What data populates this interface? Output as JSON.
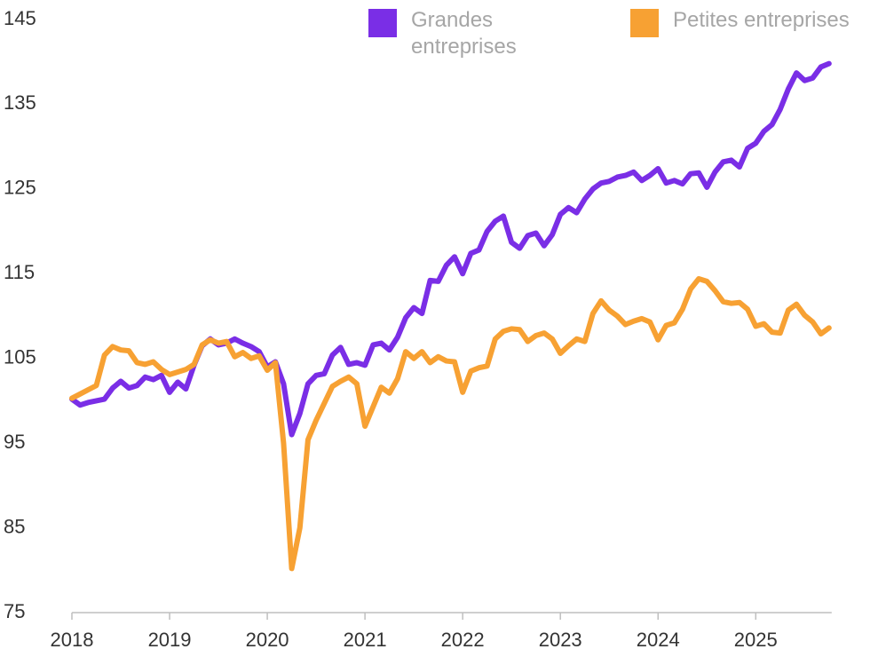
{
  "chart_data": {
    "type": "line",
    "categories": [
      "2018",
      null,
      null,
      null,
      null,
      null,
      null,
      null,
      null,
      null,
      null,
      null,
      "2019",
      null,
      null,
      null,
      null,
      null,
      null,
      null,
      null,
      null,
      null,
      null,
      "2020",
      null,
      null,
      null,
      null,
      null,
      null,
      null,
      null,
      null,
      null,
      null,
      "2021",
      null,
      null,
      null,
      null,
      null,
      null,
      null,
      null,
      null,
      null,
      null,
      "2022",
      null,
      null,
      null,
      null,
      null,
      null,
      null,
      null,
      null,
      null,
      null,
      "2023",
      null,
      null,
      null,
      null,
      null,
      null,
      null,
      null,
      null,
      null,
      null,
      "2024",
      null,
      null,
      null,
      null,
      null,
      null,
      null,
      null,
      null,
      null,
      null,
      "2025",
      null,
      null,
      null,
      null,
      null,
      null,
      null,
      null,
      null
    ],
    "series": [
      {
        "name": "Grandes entreprises",
        "color": "#7a2ee6",
        "values": [
          100.2,
          99.5,
          99.8,
          100,
          100.2,
          101.5,
          102.3,
          101.5,
          101.8,
          102.8,
          102.5,
          103,
          101,
          102.2,
          101.4,
          104.2,
          106.5,
          107.3,
          106.6,
          106.8,
          107.3,
          106.8,
          106.4,
          105.8,
          104,
          104.6,
          102,
          96,
          98.5,
          102,
          103,
          103.2,
          105.4,
          106.3,
          104.3,
          104.5,
          104.2,
          106.6,
          106.8,
          106,
          107.5,
          109.8,
          111,
          110.3,
          114.2,
          114.1,
          116,
          117,
          115,
          117.4,
          117.8,
          120,
          121.2,
          121.8,
          118.7,
          118,
          119.5,
          119.8,
          118.3,
          119.6,
          122,
          122.8,
          122.2,
          123.8,
          125,
          125.7,
          125.9,
          126.4,
          126.6,
          127,
          126,
          126.6,
          127.4,
          125.7,
          126,
          125.6,
          126.8,
          126.9,
          125.2,
          127,
          128.2,
          128.4,
          127.6,
          129.8,
          130.4,
          131.8,
          132.6,
          134.4,
          136.8,
          138.7,
          137.8,
          138.1,
          139.4,
          139.8
        ]
      },
      {
        "name": "Petites entreprises",
        "color": "#f7a133",
        "values": [
          100.3,
          100.8,
          101.3,
          101.8,
          105.4,
          106.4,
          106,
          105.9,
          104.5,
          104.3,
          104.6,
          103.7,
          103.1,
          103.4,
          103.7,
          104.3,
          106.6,
          107.2,
          106.8,
          107,
          105.2,
          105.7,
          105,
          105.3,
          103.6,
          104.5,
          95,
          80.2,
          85,
          95.4,
          97.7,
          99.7,
          101.7,
          102.3,
          102.8,
          102,
          97,
          99.3,
          101.6,
          100.9,
          102.6,
          105.8,
          105,
          105.8,
          104.5,
          105.2,
          104.7,
          104.6,
          101,
          103.5,
          103.9,
          104.1,
          107.3,
          108.2,
          108.5,
          108.4,
          107,
          107.7,
          108,
          107.3,
          105.6,
          106.5,
          107.3,
          107,
          110.3,
          111.8,
          110.7,
          110,
          109,
          109.4,
          109.7,
          109.3,
          107.2,
          108.9,
          109.2,
          110.8,
          113.2,
          114.4,
          114.1,
          113,
          111.7,
          111.5,
          111.6,
          110.8,
          108.8,
          109.1,
          108.1,
          108,
          110.7,
          111.4,
          110.1,
          109.3,
          107.9,
          108.6
        ]
      }
    ],
    "ylim": [
      75,
      145
    ],
    "yticks": [
      75,
      85,
      95,
      105,
      115,
      125,
      135,
      145
    ],
    "grid": false
  }
}
